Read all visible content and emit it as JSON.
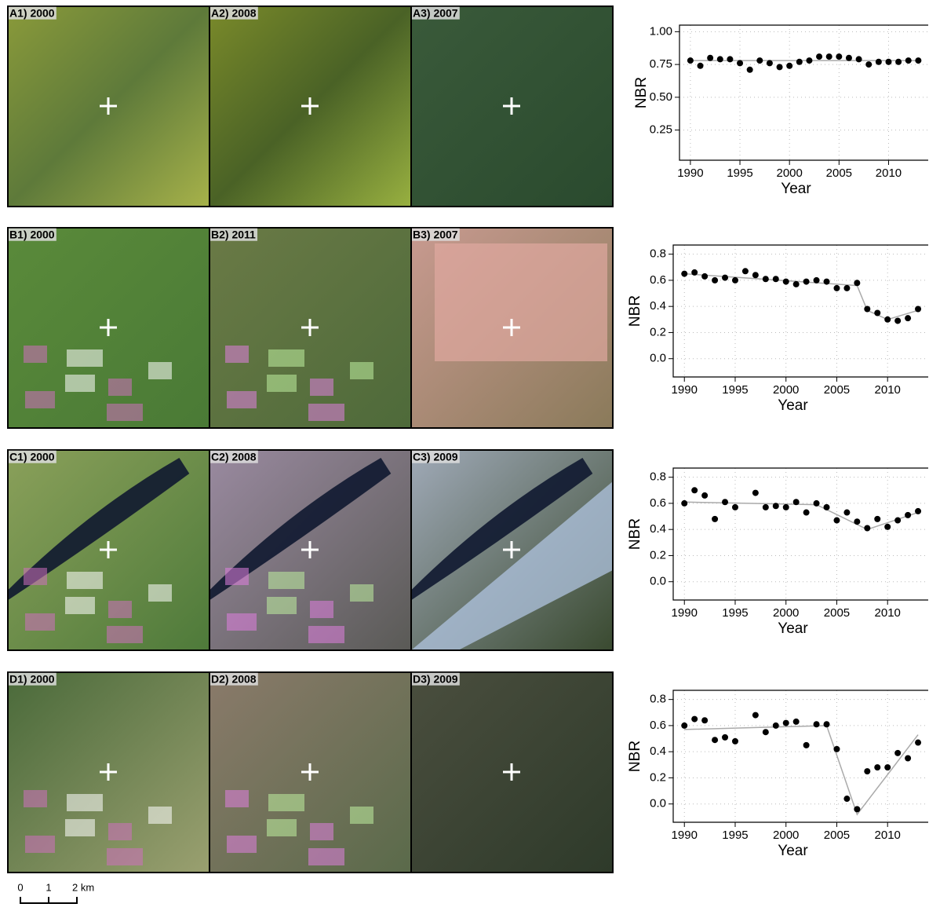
{
  "panels": [
    [
      "A1) 2000",
      "A2) 2008",
      "A3) 2007"
    ],
    [
      "B1) 2000",
      "B2) 2011",
      "B3) 2007"
    ],
    [
      "C1) 2000",
      "C2) 2008",
      "C3) 2009"
    ],
    [
      "D1) 2000",
      "D2) 2008",
      "D3) 2009"
    ]
  ],
  "scale_bar": {
    "labels": [
      "0",
      "1",
      "2 km"
    ]
  },
  "chart_data": [
    {
      "type": "scatter",
      "xlabel": "Year",
      "ylabel": "NBR",
      "color": "#000000",
      "fit_color": "#aaaaaa",
      "grid": true,
      "x": [
        1990,
        1991,
        1992,
        1993,
        1994,
        1995,
        1996,
        1997,
        1998,
        1999,
        2000,
        2001,
        2002,
        2003,
        2004,
        2005,
        2006,
        2007,
        2008,
        2009,
        2010,
        2011,
        2012,
        2013
      ],
      "values": [
        0.78,
        0.74,
        0.8,
        0.79,
        0.79,
        0.76,
        0.71,
        0.78,
        0.76,
        0.73,
        0.74,
        0.77,
        0.78,
        0.81,
        0.81,
        0.81,
        0.8,
        0.79,
        0.75,
        0.77,
        0.77,
        0.77,
        0.78,
        0.78
      ],
      "fit_x": [
        1990,
        2013
      ],
      "fit_values": [
        0.78,
        0.78
      ],
      "xlim": [
        1988.9,
        2014.0
      ],
      "ylim": [
        0.02,
        1.05
      ],
      "xticks": [
        1990,
        1995,
        2000,
        2005,
        2010
      ],
      "yticks": [
        {
          "value": 1,
          "label": "1.00"
        },
        0.75,
        {
          "value": 0.5,
          "label": "0.50"
        },
        0.25
      ]
    },
    {
      "type": "scatter",
      "xlabel": "Year",
      "ylabel": "NBR",
      "color": "#000000",
      "fit_color": "#aaaaaa",
      "grid": true,
      "x": [
        1990,
        1991,
        1992,
        1993,
        1994,
        1995,
        1996,
        1997,
        1998,
        1999,
        2000,
        2001,
        2002,
        2003,
        2004,
        2005,
        2006,
        2007,
        2008,
        2009,
        2010,
        2011,
        2012,
        2013
      ],
      "values": [
        0.65,
        0.66,
        0.63,
        0.6,
        0.62,
        0.6,
        0.67,
        0.64,
        0.61,
        0.61,
        0.59,
        0.57,
        0.59,
        0.6,
        0.59,
        0.54,
        0.54,
        0.58,
        0.38,
        0.35,
        0.3,
        0.29,
        0.31,
        0.38
      ],
      "fit_x": [
        1990,
        2007,
        2008,
        2010,
        2013
      ],
      "fit_values": [
        0.65,
        0.56,
        0.37,
        0.3,
        0.37
      ],
      "xlim": [
        1988.9,
        2014.0
      ],
      "ylim": [
        -0.14,
        0.87
      ],
      "xticks": [
        1990,
        1995,
        2000,
        2005,
        2010
      ],
      "yticks": [
        0.8,
        0.6,
        0.4,
        0.2,
        {
          "value": 0,
          "label": "0.0"
        }
      ]
    },
    {
      "type": "scatter",
      "xlabel": "Year",
      "ylabel": "NBR",
      "color": "#000000",
      "fit_color": "#aaaaaa",
      "grid": true,
      "x": [
        1990,
        1991,
        1992,
        1993,
        1994,
        1995,
        1997,
        1998,
        1999,
        2000,
        2001,
        2002,
        2003,
        2004,
        2005,
        2006,
        2007,
        2008,
        2009,
        2010,
        2011,
        2012,
        2013
      ],
      "values": [
        0.6,
        0.7,
        0.66,
        0.48,
        0.61,
        0.57,
        0.68,
        0.57,
        0.58,
        0.57,
        0.61,
        0.53,
        0.6,
        0.57,
        0.47,
        0.53,
        0.46,
        0.41,
        0.48,
        0.42,
        0.47,
        0.51,
        0.54
      ],
      "fit_x": [
        1990,
        2003,
        2008,
        2013
      ],
      "fit_values": [
        0.61,
        0.59,
        0.4,
        0.53
      ],
      "xlim": [
        1988.9,
        2014.0
      ],
      "ylim": [
        -0.14,
        0.87
      ],
      "xticks": [
        1990,
        1995,
        2000,
        2005,
        2010
      ],
      "yticks": [
        0.8,
        0.6,
        0.4,
        0.2,
        {
          "value": 0,
          "label": "0.0"
        }
      ]
    },
    {
      "type": "scatter",
      "xlabel": "Year",
      "ylabel": "NBR",
      "color": "#000000",
      "fit_color": "#aaaaaa",
      "grid": true,
      "x": [
        1990,
        1991,
        1992,
        1993,
        1994,
        1995,
        1997,
        1998,
        1999,
        2000,
        2001,
        2002,
        2003,
        2004,
        2005,
        2006,
        2007,
        2008,
        2009,
        2010,
        2011,
        2012,
        2013
      ],
      "values": [
        0.6,
        0.65,
        0.64,
        0.49,
        0.51,
        0.48,
        0.68,
        0.55,
        0.6,
        0.62,
        0.63,
        0.45,
        0.61,
        0.61,
        0.42,
        0.04,
        -0.04,
        0.25,
        0.28,
        0.28,
        0.39,
        0.35,
        0.47
      ],
      "fit_x": [
        1990,
        2004,
        2007,
        2013
      ],
      "fit_values": [
        0.57,
        0.6,
        -0.08,
        0.53
      ],
      "xlim": [
        1988.9,
        2014.0
      ],
      "ylim": [
        -0.14,
        0.87
      ],
      "xticks": [
        1990,
        1995,
        2000,
        2005,
        2010
      ],
      "yticks": [
        0.8,
        0.6,
        0.4,
        0.2,
        {
          "value": 0,
          "label": "0.0"
        }
      ]
    }
  ]
}
